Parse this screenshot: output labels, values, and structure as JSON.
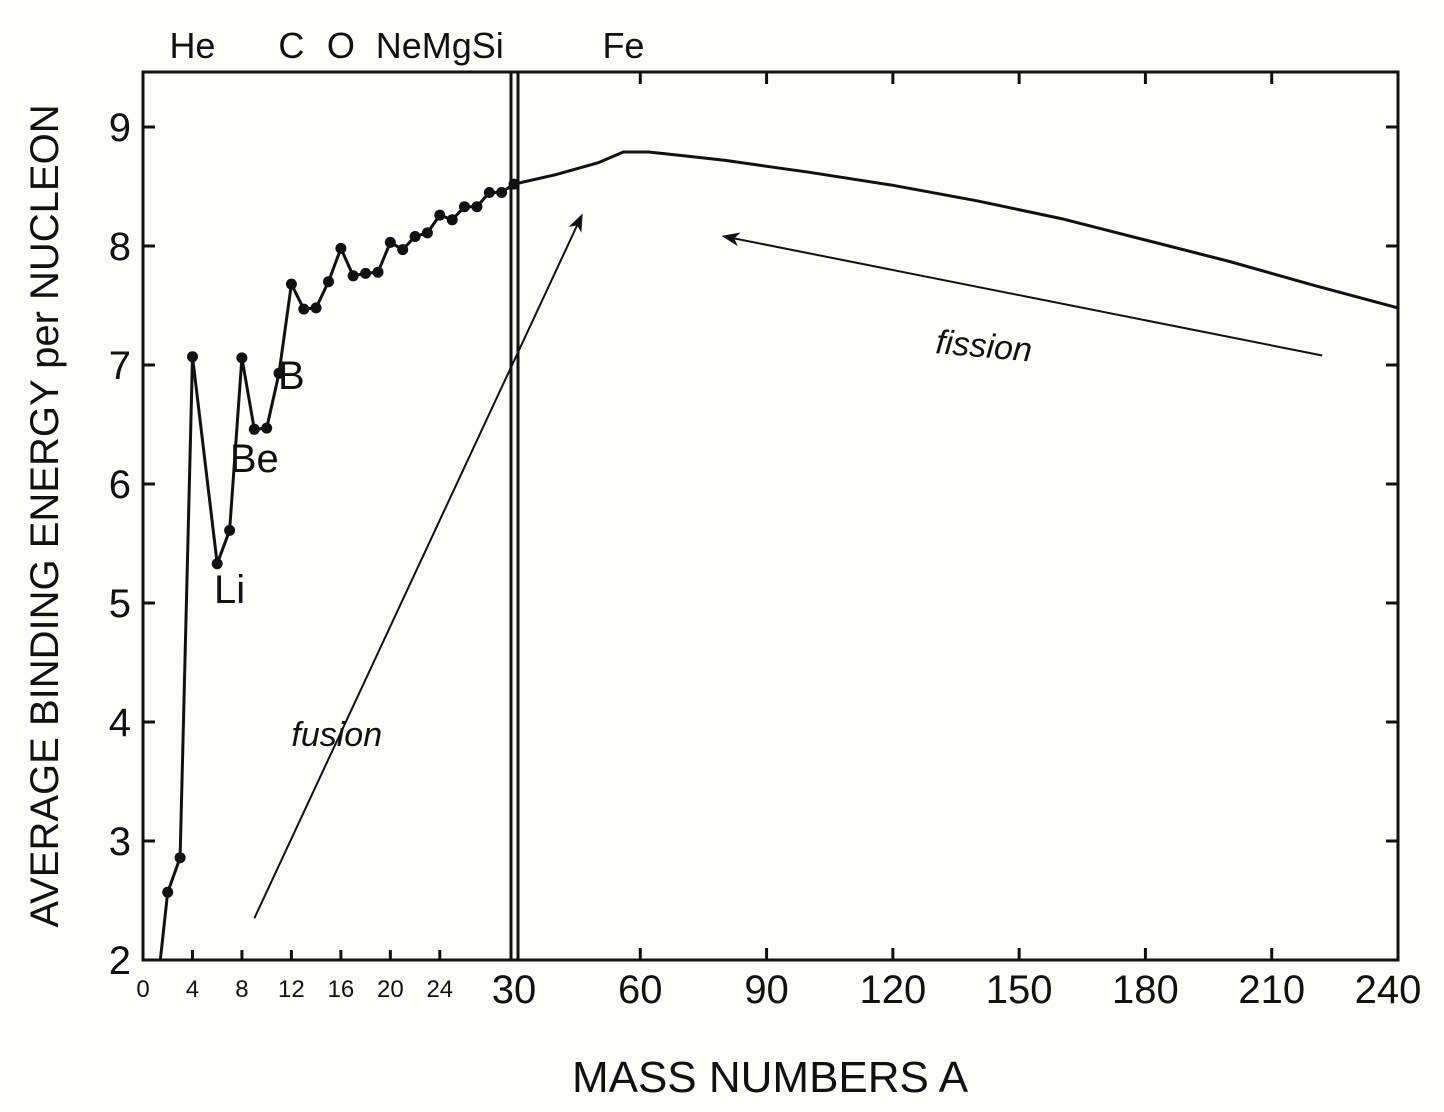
{
  "chart_data": {
    "type": "line",
    "title": "",
    "xlabel": "MASS NUMBERS A",
    "ylabel": "AVERAGE BINDING ENERGY per NUCLEON",
    "ylim": [
      2,
      9.5
    ],
    "yticks": [
      "2",
      "3",
      "4",
      "5",
      "6",
      "7",
      "8",
      "9"
    ],
    "x_break": 30,
    "x_left_range": [
      0,
      30
    ],
    "x_right_range": [
      30,
      240
    ],
    "xticks_left": [
      "0",
      "4",
      "8",
      "12",
      "16",
      "20",
      "24"
    ],
    "xticks_right": [
      "30",
      "60",
      "90",
      "120",
      "150",
      "180",
      "210",
      "240"
    ],
    "grid": false,
    "top_labels": [
      {
        "text": "He",
        "x": 4
      },
      {
        "text": "C",
        "x": 12
      },
      {
        "text": "O",
        "x": 16
      },
      {
        "text": "NeMgSi",
        "x": 24
      },
      {
        "text": "Fe",
        "x": 56
      }
    ],
    "curve_labels": [
      {
        "text": "Li",
        "x": 7,
        "y": 5.0
      },
      {
        "text": "Be",
        "x": 9,
        "y": 6.1
      },
      {
        "text": "B",
        "x": 12,
        "y": 6.8
      }
    ],
    "light_nuclei": {
      "x": [
        2,
        3,
        4,
        6,
        7,
        8,
        9,
        10,
        11,
        12,
        13,
        14,
        15,
        16,
        17,
        18,
        19,
        20,
        21,
        22,
        23,
        24,
        25,
        26,
        27,
        28,
        29,
        30
      ],
      "y": [
        2.57,
        2.86,
        7.07,
        5.33,
        5.61,
        7.06,
        6.46,
        6.47,
        6.93,
        7.68,
        7.47,
        7.48,
        7.7,
        7.98,
        7.75,
        7.77,
        7.78,
        8.03,
        7.97,
        8.08,
        8.11,
        8.26,
        8.22,
        8.33,
        8.33,
        8.45,
        8.45,
        8.52
      ]
    },
    "heavy_curve": {
      "x": [
        30,
        40,
        50,
        56,
        62,
        70,
        80,
        90,
        100,
        120,
        140,
        160,
        180,
        200,
        220,
        240
      ],
      "y": [
        8.52,
        8.6,
        8.7,
        8.79,
        8.79,
        8.76,
        8.72,
        8.67,
        8.62,
        8.51,
        8.38,
        8.23,
        8.05,
        7.87,
        7.67,
        7.48
      ]
    },
    "annotations": [
      {
        "text": "fusion",
        "x": 12,
        "y": 3.8
      },
      {
        "text": "fission",
        "x": 130,
        "y": 7.1
      }
    ],
    "arrows": [
      {
        "name": "fusion",
        "from": [
          9,
          2.35
        ],
        "to": [
          46,
          8.25
        ]
      },
      {
        "name": "fission",
        "from": [
          222,
          7.08
        ],
        "to": [
          80,
          8.08
        ]
      }
    ]
  }
}
